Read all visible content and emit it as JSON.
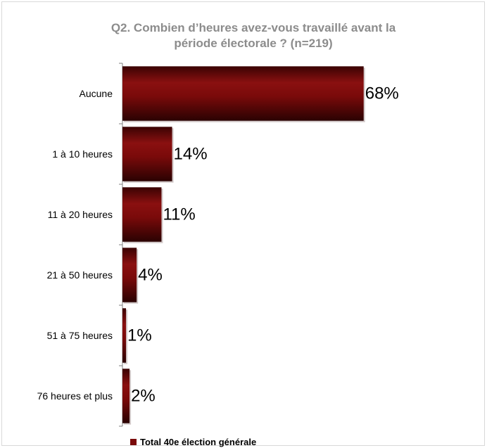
{
  "chart_data": {
    "type": "bar",
    "orientation": "horizontal",
    "title": "Q2. Combien d’heures avez-vous travaillé avant la période électorale ? (n=219)",
    "title_lines": [
      "Q2. Combien d’heures avez-vous travaillé avant la",
      "période électorale ? (n=219)"
    ],
    "categories": [
      "Aucune",
      "1 à 10 heures",
      "11 à 20 heures",
      "21 à 50 heures",
      "51 à 75 heures",
      "76 heures et plus"
    ],
    "series": [
      {
        "name": "Total 40e élection générale",
        "values": [
          68,
          14,
          11,
          4,
          1,
          2
        ],
        "value_labels": [
          "68%",
          "14%",
          "11%",
          "4%",
          "1%",
          "2%"
        ],
        "color": "#7a0a0a"
      }
    ],
    "xlim": [
      0,
      100
    ],
    "grid": false,
    "legend_position": "bottom"
  }
}
